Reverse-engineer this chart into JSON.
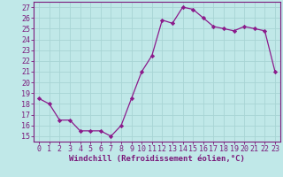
{
  "x": [
    0,
    1,
    2,
    3,
    4,
    5,
    6,
    7,
    8,
    9,
    10,
    11,
    12,
    13,
    14,
    15,
    16,
    17,
    18,
    19,
    20,
    21,
    22,
    23
  ],
  "y": [
    18.5,
    18.0,
    16.5,
    16.5,
    15.5,
    15.5,
    15.5,
    15.0,
    16.0,
    18.5,
    21.0,
    22.5,
    25.8,
    25.5,
    27.0,
    26.8,
    26.0,
    25.2,
    25.0,
    24.8,
    25.2,
    25.0,
    24.8,
    21.0
  ],
  "line_color": "#8b1a8b",
  "marker": "D",
  "marker_size": 2.2,
  "bg_color": "#c0e8e8",
  "grid_color": "#a8d4d4",
  "xlabel": "Windchill (Refroidissement éolien,°C)",
  "xlabel_fontsize": 6.5,
  "yticks": [
    15,
    16,
    17,
    18,
    19,
    20,
    21,
    22,
    23,
    24,
    25,
    26,
    27
  ],
  "xticks": [
    0,
    1,
    2,
    3,
    4,
    5,
    6,
    7,
    8,
    9,
    10,
    11,
    12,
    13,
    14,
    15,
    16,
    17,
    18,
    19,
    20,
    21,
    22,
    23
  ],
  "ylim": [
    14.5,
    27.5
  ],
  "xlim": [
    -0.5,
    23.5
  ],
  "tick_fontsize": 6.0,
  "tick_color": "#7b1a7b",
  "spine_color": "#7b1a7b",
  "xlabel_bold": true
}
